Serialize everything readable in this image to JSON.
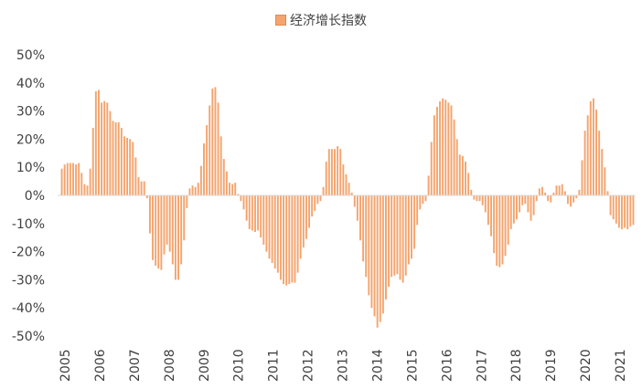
{
  "chart_data": {
    "type": "bar",
    "legend": "经济增长指数",
    "bar_color": "#F4A46E",
    "bar_stroke": "#E48A4E",
    "ylim": [
      -0.5,
      0.5
    ],
    "yticks": [
      "50%",
      "40%",
      "30%",
      "20%",
      "10%",
      "0%",
      "-10%",
      "-20%",
      "-30%",
      "-40%",
      "-50%"
    ],
    "years": [
      "2005",
      "2006",
      "2007",
      "2008",
      "2009",
      "2010",
      "2011",
      "2012",
      "2013",
      "2014",
      "2015",
      "2016",
      "2017",
      "2018",
      "2019",
      "2020",
      "2021"
    ],
    "values": [
      0.095,
      0.11,
      0.115,
      0.115,
      0.115,
      0.11,
      0.115,
      0.08,
      0.04,
      0.035,
      0.095,
      0.24,
      0.37,
      0.375,
      0.33,
      0.335,
      0.33,
      0.3,
      0.265,
      0.26,
      0.26,
      0.24,
      0.21,
      0.205,
      0.2,
      0.19,
      0.135,
      0.065,
      0.05,
      0.05,
      -0.01,
      -0.135,
      -0.23,
      -0.25,
      -0.26,
      -0.265,
      -0.21,
      -0.175,
      -0.2,
      -0.245,
      -0.3,
      -0.3,
      -0.245,
      -0.16,
      -0.045,
      0.025,
      0.035,
      0.03,
      0.045,
      0.105,
      0.185,
      0.25,
      0.32,
      0.38,
      0.385,
      0.33,
      0.21,
      0.13,
      0.085,
      0.045,
      0.04,
      0.045,
      0.005,
      -0.02,
      -0.05,
      -0.09,
      -0.12,
      -0.125,
      -0.13,
      -0.125,
      -0.15,
      -0.175,
      -0.2,
      -0.225,
      -0.24,
      -0.26,
      -0.275,
      -0.3,
      -0.315,
      -0.32,
      -0.315,
      -0.31,
      -0.31,
      -0.275,
      -0.225,
      -0.185,
      -0.155,
      -0.115,
      -0.075,
      -0.055,
      -0.03,
      -0.02,
      0.03,
      0.12,
      0.165,
      0.165,
      0.165,
      0.175,
      0.165,
      0.11,
      0.075,
      0.045,
      0.01,
      -0.04,
      -0.09,
      -0.16,
      -0.235,
      -0.29,
      -0.355,
      -0.4,
      -0.43,
      -0.47,
      -0.45,
      -0.42,
      -0.37,
      -0.325,
      -0.29,
      -0.285,
      -0.28,
      -0.3,
      -0.31,
      -0.285,
      -0.245,
      -0.225,
      -0.19,
      -0.105,
      -0.05,
      -0.03,
      -0.02,
      0.07,
      0.19,
      0.285,
      0.315,
      0.335,
      0.345,
      0.34,
      0.33,
      0.32,
      0.27,
      0.2,
      0.145,
      0.14,
      0.12,
      0.08,
      0.02,
      -0.015,
      -0.02,
      -0.02,
      -0.035,
      -0.06,
      -0.105,
      -0.145,
      -0.205,
      -0.25,
      -0.255,
      -0.245,
      -0.215,
      -0.175,
      -0.12,
      -0.1,
      -0.085,
      -0.06,
      -0.035,
      -0.03,
      -0.06,
      -0.09,
      -0.07,
      -0.02,
      0.025,
      0.03,
      0.01,
      -0.02,
      -0.025,
      0.01,
      0.035,
      0.035,
      0.04,
      0.015,
      -0.03,
      -0.04,
      -0.025,
      -0.01,
      0.02,
      0.125,
      0.23,
      0.285,
      0.335,
      0.345,
      0.305,
      0.23,
      0.165,
      0.1,
      0.015,
      -0.07,
      -0.085,
      -0.1,
      -0.115,
      -0.12,
      -0.115,
      -0.12,
      -0.11,
      -0.105
    ]
  }
}
